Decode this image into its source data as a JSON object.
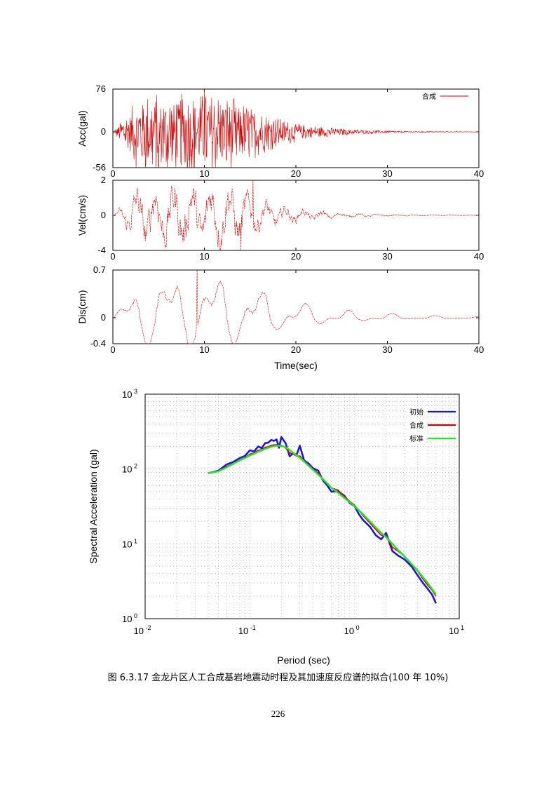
{
  "chart_data": [
    {
      "type": "line",
      "ylabel": "Acc(gal)",
      "xlabel": "",
      "xlim": [
        0,
        40
      ],
      "ylim": [
        -56,
        76
      ],
      "x_ticks": [
        "0",
        "10",
        "20",
        "30",
        "40"
      ],
      "y_ticks": [
        "76",
        "0",
        "-56"
      ],
      "legend": [
        "合成"
      ],
      "series": [
        {
          "name": "合成",
          "color": "#cc0000",
          "duration_sec": 40,
          "peak_pos": 76,
          "peak_neg": -56
        }
      ]
    },
    {
      "type": "line",
      "ylabel": "Vel(cm/s)",
      "xlabel": "",
      "xlim": [
        0,
        40
      ],
      "ylim": [
        -4,
        2
      ],
      "x_ticks": [
        "0",
        "10",
        "20",
        "30",
        "40"
      ],
      "y_ticks": [
        "2",
        "0",
        "-4"
      ],
      "series": [
        {
          "name": "合成",
          "color": "#cc0000",
          "duration_sec": 40,
          "peak_pos": 2,
          "peak_neg": -4
        }
      ]
    },
    {
      "type": "line",
      "ylabel": "Dis(cm)",
      "xlabel": "Time(sec)",
      "xlim": [
        0,
        40
      ],
      "ylim": [
        -0.4,
        0.7
      ],
      "x_ticks": [
        "0",
        "10",
        "20",
        "30",
        "40"
      ],
      "y_ticks": [
        "0.7",
        "0",
        "-0.4"
      ],
      "series": [
        {
          "name": "合成",
          "color": "#cc0000",
          "duration_sec": 40,
          "peak_pos": 0.7,
          "peak_neg": -0.4
        }
      ]
    },
    {
      "type": "line",
      "xscale": "log",
      "yscale": "log",
      "xlabel": "Period (sec)",
      "ylabel": "Spectral Acceleration (gal)",
      "xlim": [
        0.01,
        10
      ],
      "ylim": [
        1,
        1000
      ],
      "legend": [
        "初始",
        "合成",
        "标准"
      ],
      "colors": [
        "#1a1acc",
        "#cc0000",
        "#33dd33"
      ],
      "x": [
        0.04,
        0.05,
        0.06,
        0.07,
        0.08,
        0.09,
        0.1,
        0.11,
        0.12,
        0.13,
        0.14,
        0.15,
        0.16,
        0.17,
        0.18,
        0.19,
        0.2,
        0.22,
        0.24,
        0.26,
        0.28,
        0.3,
        0.33,
        0.36,
        0.4,
        0.45,
        0.5,
        0.55,
        0.6,
        0.7,
        0.8,
        0.9,
        1.0,
        1.1,
        1.2,
        1.4,
        1.6,
        1.8,
        2.0,
        2.3,
        2.6,
        3.0,
        3.5,
        4.0,
        4.5,
        5.0,
        5.5,
        6.0
      ],
      "series": [
        {
          "name": "初始",
          "values": [
            88,
            95,
            115,
            125,
            140,
            150,
            178,
            172,
            200,
            190,
            222,
            225,
            245,
            238,
            248,
            192,
            268,
            220,
            148,
            163,
            155,
            205,
            130,
            120,
            103,
            95,
            70,
            60,
            50,
            50,
            44,
            35,
            32,
            25,
            21,
            17,
            13,
            11.5,
            14,
            8,
            7,
            6.2,
            5,
            3.8,
            3,
            2.5,
            2.1,
            1.6
          ]
        },
        {
          "name": "合成",
          "values": [
            88,
            94,
            108,
            120,
            132,
            142,
            158,
            165,
            178,
            182,
            195,
            198,
            208,
            210,
            212,
            203,
            208,
            190,
            165,
            158,
            148,
            150,
            128,
            115,
            100,
            88,
            74,
            64,
            56,
            52,
            43,
            37,
            33,
            28,
            24,
            19,
            15.5,
            13,
            13,
            9,
            8,
            6.8,
            5.3,
            4.3,
            3.4,
            2.8,
            2.4,
            2.0
          ]
        },
        {
          "name": "标准",
          "values": [
            88,
            93,
            105,
            118,
            130,
            140,
            152,
            160,
            170,
            178,
            186,
            192,
            198,
            202,
            205,
            205,
            204,
            195,
            180,
            165,
            152,
            142,
            126,
            112,
            98,
            84,
            73,
            64,
            56,
            48,
            41,
            36,
            32,
            28,
            25,
            20,
            16.5,
            14,
            12.3,
            10,
            8.3,
            6.8,
            5.4,
            4.4,
            3.6,
            3.0,
            2.5,
            2.1
          ]
        }
      ],
      "x_tick_labels": [
        {
          "base": "10",
          "exp": "-2"
        },
        {
          "base": "10",
          "exp": "-1"
        },
        {
          "base": "10",
          "exp": "0"
        },
        {
          "base": "10",
          "exp": "1"
        }
      ],
      "y_tick_labels": [
        {
          "base": "10",
          "exp": "0"
        },
        {
          "base": "10",
          "exp": "1"
        },
        {
          "base": "10",
          "exp": "2"
        },
        {
          "base": "10",
          "exp": "3"
        }
      ]
    }
  ],
  "caption": "图 6.3.17 金龙片区人工合成基岩地震动时程及其加速度反应谱的拟合(100 年 10%)",
  "page_number": "226"
}
